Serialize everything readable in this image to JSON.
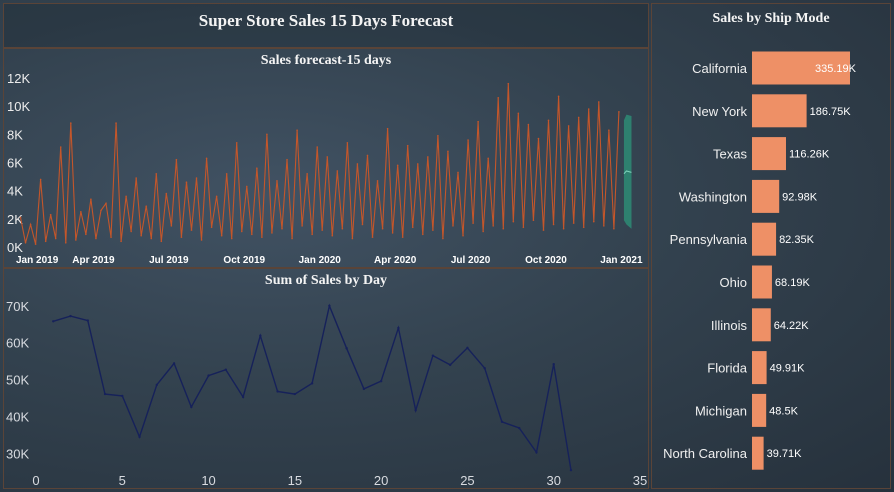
{
  "dashboard": {
    "title": "Super Store Sales 15 Days Forecast"
  },
  "colors": {
    "forecast_line": "#c4562a",
    "forecast_band": "#2e8b74",
    "day_line": "#16215a",
    "bar": "#ee9066"
  },
  "chart_data": [
    {
      "type": "line",
      "title": "Sales forecast-15 days",
      "ylim": [
        0,
        12500
      ],
      "y_ticks": [
        {
          "value": 0,
          "label": "0K"
        },
        {
          "value": 2000,
          "label": "2K"
        },
        {
          "value": 4000,
          "label": "4K"
        },
        {
          "value": 6000,
          "label": "6K"
        },
        {
          "value": 8000,
          "label": "8K"
        },
        {
          "value": 10000,
          "label": "10K"
        },
        {
          "value": 12000,
          "label": "12K"
        }
      ],
      "x_domain": [
        0,
        24.5
      ],
      "x_ticks": [
        {
          "value": 0,
          "label": "Jan 2019"
        },
        {
          "value": 3,
          "label": "Apr 2019"
        },
        {
          "value": 6,
          "label": "Jul 2019"
        },
        {
          "value": 9,
          "label": "Oct 2019"
        },
        {
          "value": 12,
          "label": "Jan 2020"
        },
        {
          "value": 15,
          "label": "Apr 2020"
        },
        {
          "value": 18,
          "label": "Jul 2020"
        },
        {
          "value": 21,
          "label": "Oct 2020"
        },
        {
          "value": 24,
          "label": "Jan 2021"
        }
      ],
      "series": [
        {
          "name": "Sales",
          "x_unit": "months since Jan 2019",
          "x": [
            0.1,
            0.3,
            0.5,
            0.7,
            0.9,
            1.1,
            1.3,
            1.5,
            1.7,
            1.9,
            2.1,
            2.3,
            2.5,
            2.7,
            2.9,
            3.1,
            3.3,
            3.5,
            3.7,
            3.9,
            4.1,
            4.3,
            4.5,
            4.7,
            4.9,
            5.1,
            5.3,
            5.5,
            5.7,
            5.9,
            6.1,
            6.3,
            6.5,
            6.7,
            6.9,
            7.1,
            7.3,
            7.5,
            7.7,
            7.9,
            8.1,
            8.3,
            8.5,
            8.7,
            8.9,
            9.1,
            9.3,
            9.5,
            9.7,
            9.9,
            10.1,
            10.3,
            10.5,
            10.7,
            10.9,
            11.1,
            11.3,
            11.5,
            11.7,
            11.9,
            12.1,
            12.3,
            12.5,
            12.7,
            12.9,
            13.1,
            13.3,
            13.5,
            13.7,
            13.9,
            14.1,
            14.3,
            14.5,
            14.7,
            14.9,
            15.1,
            15.3,
            15.5,
            15.7,
            15.9,
            16.1,
            16.3,
            16.5,
            16.7,
            16.9,
            17.1,
            17.3,
            17.5,
            17.7,
            17.9,
            18.1,
            18.3,
            18.5,
            18.7,
            18.9,
            19.1,
            19.3,
            19.5,
            19.7,
            19.9,
            20.1,
            20.3,
            20.5,
            20.7,
            20.9,
            21.1,
            21.3,
            21.5,
            21.7,
            21.9,
            22.1,
            22.3,
            22.5,
            22.7,
            22.9,
            23.1,
            23.3,
            23.5,
            23.7,
            23.9
          ],
          "values": [
            2100,
            300,
            1600,
            200,
            4800,
            400,
            2300,
            600,
            7100,
            300,
            8800,
            500,
            2500,
            900,
            3400,
            600,
            2600,
            3100,
            700,
            8800,
            400,
            3600,
            1100,
            4900,
            800,
            2900,
            600,
            5200,
            400,
            3800,
            1500,
            6200,
            700,
            4600,
            1200,
            4900,
            500,
            6300,
            1400,
            3600,
            800,
            5200,
            600,
            7400,
            1100,
            4300,
            900,
            5600,
            700,
            8000,
            1000,
            4700,
            1300,
            6200,
            600,
            8300,
            1500,
            5200,
            900,
            7100,
            1200,
            6400,
            800,
            5400,
            1300,
            7400,
            600,
            5900,
            1600,
            6500,
            700,
            4700,
            1300,
            8400,
            1000,
            5800,
            700,
            7200,
            1400,
            5900,
            900,
            6400,
            1200,
            7900,
            600,
            6800,
            1500,
            5300,
            800,
            7600,
            1700,
            8900,
            1100,
            6300,
            1500,
            10600,
            1300,
            11600,
            1800,
            9500,
            1400,
            8700,
            1900,
            7700,
            1200,
            9000,
            1600,
            10700,
            1300,
            8600,
            1700,
            9200,
            1400,
            9800,
            1800,
            10300,
            1500,
            8300,
            1300,
            9600
          ]
        },
        {
          "name": "Forecast (15 days)",
          "x": [
            24.1,
            24.2,
            24.4
          ],
          "upper": [
            9000,
            9400,
            9300
          ],
          "lower": [
            1900,
            1600,
            1300
          ],
          "mid": [
            5200,
            5400,
            5300
          ]
        }
      ]
    },
    {
      "type": "line",
      "title": "Sum of Sales by Day",
      "xlim": [
        0,
        35
      ],
      "ylim": [
        25000,
        74000
      ],
      "x_ticks": [
        {
          "value": 0,
          "label": "0"
        },
        {
          "value": 5,
          "label": "5"
        },
        {
          "value": 10,
          "label": "10"
        },
        {
          "value": 15,
          "label": "15"
        },
        {
          "value": 20,
          "label": "20"
        },
        {
          "value": 25,
          "label": "25"
        },
        {
          "value": 30,
          "label": "30"
        },
        {
          "value": 35,
          "label": "35"
        }
      ],
      "y_ticks": [
        {
          "value": 30000,
          "label": "30K"
        },
        {
          "value": 40000,
          "label": "40K"
        },
        {
          "value": 50000,
          "label": "50K"
        },
        {
          "value": 60000,
          "label": "60K"
        },
        {
          "value": 70000,
          "label": "70K"
        }
      ],
      "series": [
        {
          "name": "Sales",
          "x": [
            1,
            2,
            3,
            4,
            5,
            6,
            7,
            8,
            9,
            10,
            11,
            12,
            13,
            14,
            15,
            16,
            17,
            18,
            19,
            20,
            21,
            22,
            23,
            24,
            25,
            26,
            27,
            28,
            29,
            30,
            31
          ],
          "values": [
            65800,
            67200,
            66000,
            46100,
            45600,
            34500,
            48600,
            54400,
            42600,
            51100,
            52700,
            45300,
            61900,
            46800,
            46100,
            49000,
            70000,
            58500,
            47500,
            49600,
            64000,
            41700,
            56500,
            54000,
            58600,
            53100,
            38600,
            36900,
            30300,
            54200,
            25500
          ]
        }
      ]
    },
    {
      "type": "bar",
      "orientation": "horizontal",
      "title": "Sales by Ship Mode",
      "categories": [
        "California",
        "New York",
        "Texas",
        "Washington",
        "Pennsylvania",
        "Ohio",
        "Illinois",
        "Florida",
        "Michigan",
        "North Carolina"
      ],
      "values": [
        335190,
        186750,
        116260,
        92980,
        82350,
        68190,
        64220,
        49910,
        48500,
        39710
      ],
      "labels": [
        "335.19K",
        "186.75K",
        "116.26K",
        "92.98K",
        "82.35K",
        "68.19K",
        "64.22K",
        "49.91K",
        "48.5K",
        "39.71K"
      ]
    }
  ]
}
